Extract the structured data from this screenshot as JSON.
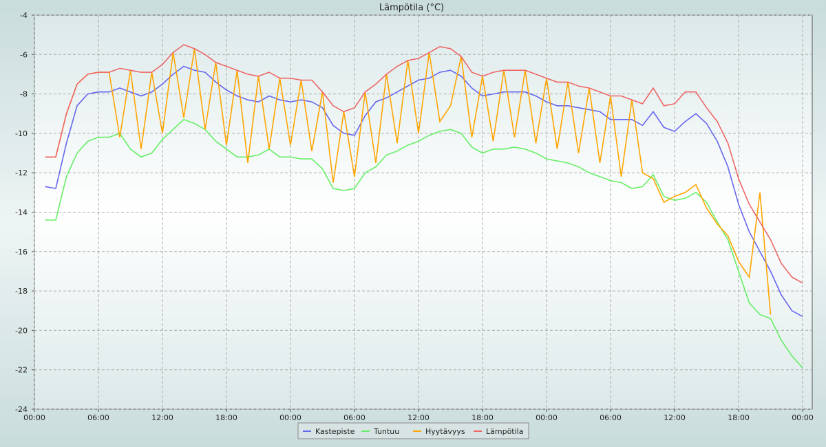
{
  "chart_data": {
    "type": "line",
    "title": "Lämpötila (°C)",
    "x": [
      1,
      2,
      3,
      4,
      5,
      6,
      7,
      8,
      9,
      10,
      11,
      12,
      13,
      14,
      15,
      16,
      17,
      18,
      19,
      20,
      21,
      22,
      23,
      24,
      25,
      26,
      27,
      28,
      29,
      30,
      31,
      32,
      33,
      34,
      35,
      36,
      37,
      38,
      39,
      40,
      41,
      42,
      43,
      44,
      45,
      46,
      47,
      48,
      49,
      50,
      51,
      52,
      53,
      54,
      55,
      56,
      57,
      58,
      59,
      60,
      61,
      62,
      63,
      64,
      65,
      66,
      67,
      68,
      69,
      70,
      71,
      72
    ],
    "xlim": [
      0,
      72.9
    ],
    "xticks": [
      {
        "value": 0,
        "label": "00:00"
      },
      {
        "value": 6,
        "label": "06:00"
      },
      {
        "value": 12,
        "label": "12:00"
      },
      {
        "value": 18,
        "label": "18:00"
      },
      {
        "value": 24,
        "label": "00:00"
      },
      {
        "value": 30,
        "label": "06:00"
      },
      {
        "value": 36,
        "label": "12:00"
      },
      {
        "value": 42,
        "label": "18:00"
      },
      {
        "value": 48,
        "label": "00:00"
      },
      {
        "value": 54,
        "label": "06:00"
      },
      {
        "value": 60,
        "label": "12:00"
      },
      {
        "value": 66,
        "label": "18:00"
      },
      {
        "value": 72,
        "label": "00:00"
      }
    ],
    "ylim": [
      -24,
      -4
    ],
    "yticks": [
      -24,
      -22,
      -20,
      -18,
      -16,
      -14,
      -12,
      -10,
      -8,
      -6,
      -4
    ],
    "grid": true,
    "legend": "bottom",
    "series": [
      {
        "name": "Kastepiste",
        "color": "#6666ee",
        "values": [
          -12.7,
          -12.8,
          -10.5,
          -8.6,
          -8.0,
          -7.9,
          -7.9,
          -7.7,
          -7.9,
          -8.1,
          -7.9,
          -7.5,
          -7.0,
          -6.6,
          -6.8,
          -6.9,
          -7.4,
          -7.8,
          -8.1,
          -8.3,
          -8.4,
          -8.1,
          -8.3,
          -8.4,
          -8.3,
          -8.4,
          -8.7,
          -9.6,
          -10.0,
          -10.1,
          -9.1,
          -8.4,
          -8.2,
          -7.9,
          -7.6,
          -7.3,
          -7.2,
          -6.9,
          -6.8,
          -7.1,
          -7.7,
          -8.1,
          -8.0,
          -7.9,
          -7.9,
          -7.9,
          -8.1,
          -8.4,
          -8.6,
          -8.6,
          -8.7,
          -8.8,
          -8.9,
          -9.3,
          -9.3,
          -9.3,
          -9.6,
          -8.9,
          -9.7,
          -9.9,
          -9.4,
          -9.0,
          -9.5,
          -10.4,
          -11.7,
          -13.6,
          -15.0,
          -16.0,
          -17.0,
          -18.2,
          -19.0,
          -19.3
        ]
      },
      {
        "name": "Tuntuu",
        "color": "#66ee66",
        "values": [
          -14.4,
          -14.4,
          -12.2,
          -11.0,
          -10.4,
          -10.2,
          -10.2,
          -10.0,
          -10.8,
          -11.2,
          -11.0,
          -10.3,
          -9.8,
          -9.3,
          -9.5,
          -9.8,
          -10.4,
          -10.8,
          -11.2,
          -11.2,
          -11.1,
          -10.8,
          -11.2,
          -11.2,
          -11.3,
          -11.3,
          -11.8,
          -12.8,
          -12.9,
          -12.8,
          -12.0,
          -11.7,
          -11.1,
          -10.9,
          -10.6,
          -10.4,
          -10.1,
          -9.9,
          -9.8,
          -10.0,
          -10.7,
          -11.0,
          -10.8,
          -10.8,
          -10.7,
          -10.8,
          -11.0,
          -11.3,
          -11.4,
          -11.5,
          -11.7,
          -12.0,
          -12.2,
          -12.4,
          -12.5,
          -12.8,
          -12.7,
          -12.1,
          -13.2,
          -13.4,
          -13.3,
          -13.0,
          -13.5,
          -14.5,
          -15.4,
          -17.0,
          -18.6,
          -19.2,
          -19.4,
          -20.5,
          -21.3,
          -21.9
        ]
      },
      {
        "name": "Hyytävyys",
        "color": "#ffa500",
        "values": [
          -11.2,
          -11.2,
          -9.0,
          -7.5,
          -7.0,
          -6.9,
          -6.9,
          -10.2,
          -6.8,
          -10.8,
          -6.9,
          -10.0,
          -5.9,
          -9.2,
          -5.7,
          -9.8,
          -6.4,
          -10.6,
          -6.8,
          -11.5,
          -7.1,
          -10.8,
          -7.2,
          -10.6,
          -7.3,
          -10.9,
          -7.9,
          -12.5,
          -8.9,
          -12.2,
          -7.9,
          -11.5,
          -7.0,
          -10.5,
          -6.3,
          -10.0,
          -5.9,
          -9.4,
          -8.6,
          -6.1,
          -10.2,
          -7.1,
          -10.4,
          -6.8,
          -10.2,
          -6.8,
          -10.5,
          -7.2,
          -10.8,
          -7.4,
          -11.0,
          -7.7,
          -11.5,
          -8.1,
          -12.2,
          -8.3,
          -12.0,
          -12.3,
          -13.5,
          -13.2,
          -13.0,
          -12.6,
          -13.8,
          -14.6,
          -15.2,
          -16.5,
          -17.3,
          -13.0,
          -19.2,
          null,
          null,
          null
        ]
      },
      {
        "name": "Lämpötila",
        "color": "#ee6666",
        "values": [
          -11.2,
          -11.2,
          -9.0,
          -7.5,
          -7.0,
          -6.9,
          -6.9,
          -6.7,
          -6.8,
          -6.9,
          -6.9,
          -6.5,
          -5.9,
          -5.5,
          -5.7,
          -6.0,
          -6.4,
          -6.6,
          -6.8,
          -7.0,
          -7.1,
          -6.9,
          -7.2,
          -7.2,
          -7.3,
          -7.3,
          -7.9,
          -8.6,
          -8.9,
          -8.7,
          -7.9,
          -7.5,
          -7.0,
          -6.6,
          -6.3,
          -6.2,
          -5.9,
          -5.6,
          -5.7,
          -6.1,
          -6.9,
          -7.1,
          -6.9,
          -6.8,
          -6.8,
          -6.8,
          -7.0,
          -7.2,
          -7.4,
          -7.4,
          -7.6,
          -7.7,
          -7.9,
          -8.1,
          -8.1,
          -8.3,
          -8.5,
          -7.7,
          -8.6,
          -8.5,
          -7.9,
          -7.9,
          -8.7,
          -9.4,
          -10.5,
          -12.3,
          -13.6,
          -14.5,
          -15.4,
          -16.6,
          -17.3,
          -17.6
        ]
      }
    ]
  }
}
